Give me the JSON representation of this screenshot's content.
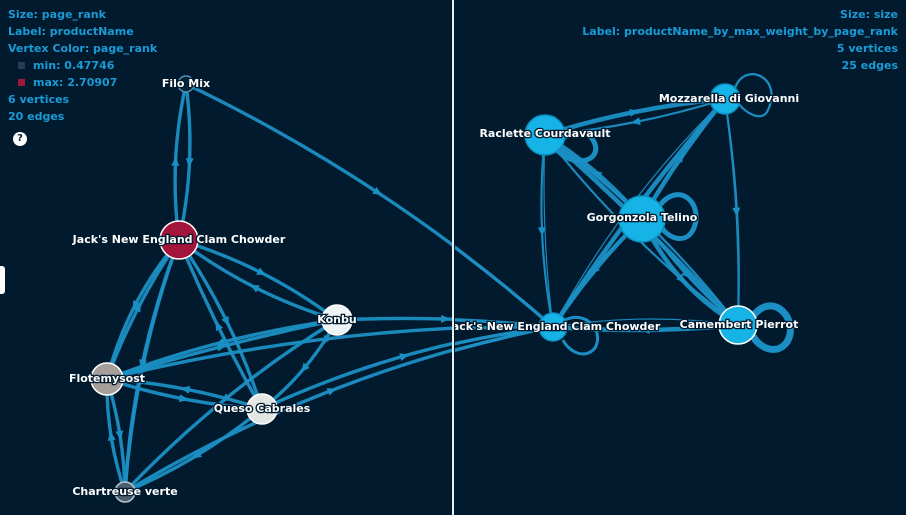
{
  "left_panel": {
    "size_label": "Size: page_rank",
    "label_label": "Label: productName",
    "vertex_color_label": "Vertex Color: page_rank",
    "legend": {
      "min": {
        "label": "min: 0.47746",
        "color": "#2a3a52"
      },
      "max": {
        "label": "max: 2.70907",
        "color": "#a0183a"
      }
    },
    "vertices_count": "6 vertices",
    "edges_count": "20 edges",
    "help_icon_glyph": "?",
    "edge_color": "#1b8fc4",
    "vertices": [
      {
        "id": "filo",
        "label": "Filo Mix",
        "fill": "#03243b",
        "ring": "#5b8fb0"
      },
      {
        "id": "jack",
        "label": "Jack's New England Clam Chowder",
        "fill": "#a3153a",
        "ring": "#ffffff"
      },
      {
        "id": "konbu",
        "label": "Konbu",
        "fill": "#eef3f5",
        "ring": "#ffffff"
      },
      {
        "id": "flot",
        "label": "Flotemysost",
        "fill": "#a69e9a",
        "ring": "#ffffff"
      },
      {
        "id": "queso",
        "label": "Queso Cabrales",
        "fill": "#e4e6e3",
        "ring": "#ffffff"
      },
      {
        "id": "chart",
        "label": "Chartreuse verte",
        "fill": "#4d5f6f",
        "ring": "#b0c4cf"
      }
    ]
  },
  "right_panel": {
    "size_label": "Size: size",
    "label_label": "Label: productName_by_max_weight_by_page_rank",
    "vertices_count": "5 vertices",
    "edges_count": "25 edges",
    "edge_color": "#1b8fc4",
    "vertices": [
      {
        "id": "mozz",
        "label": "Mozzarella di Giovanni",
        "fill": "#16b3e6"
      },
      {
        "id": "rac",
        "label": "Raclette Courdavault",
        "fill": "#16b3e6"
      },
      {
        "id": "gorg",
        "label": "Gorgonzola Telino",
        "fill": "#16b3e6"
      },
      {
        "id": "jack2",
        "label": "Jack's New England Clam Chowder",
        "fill": "#16b3e6"
      },
      {
        "id": "camb",
        "label": "Camembert Pierrot",
        "fill": "#16b3e6"
      }
    ]
  }
}
